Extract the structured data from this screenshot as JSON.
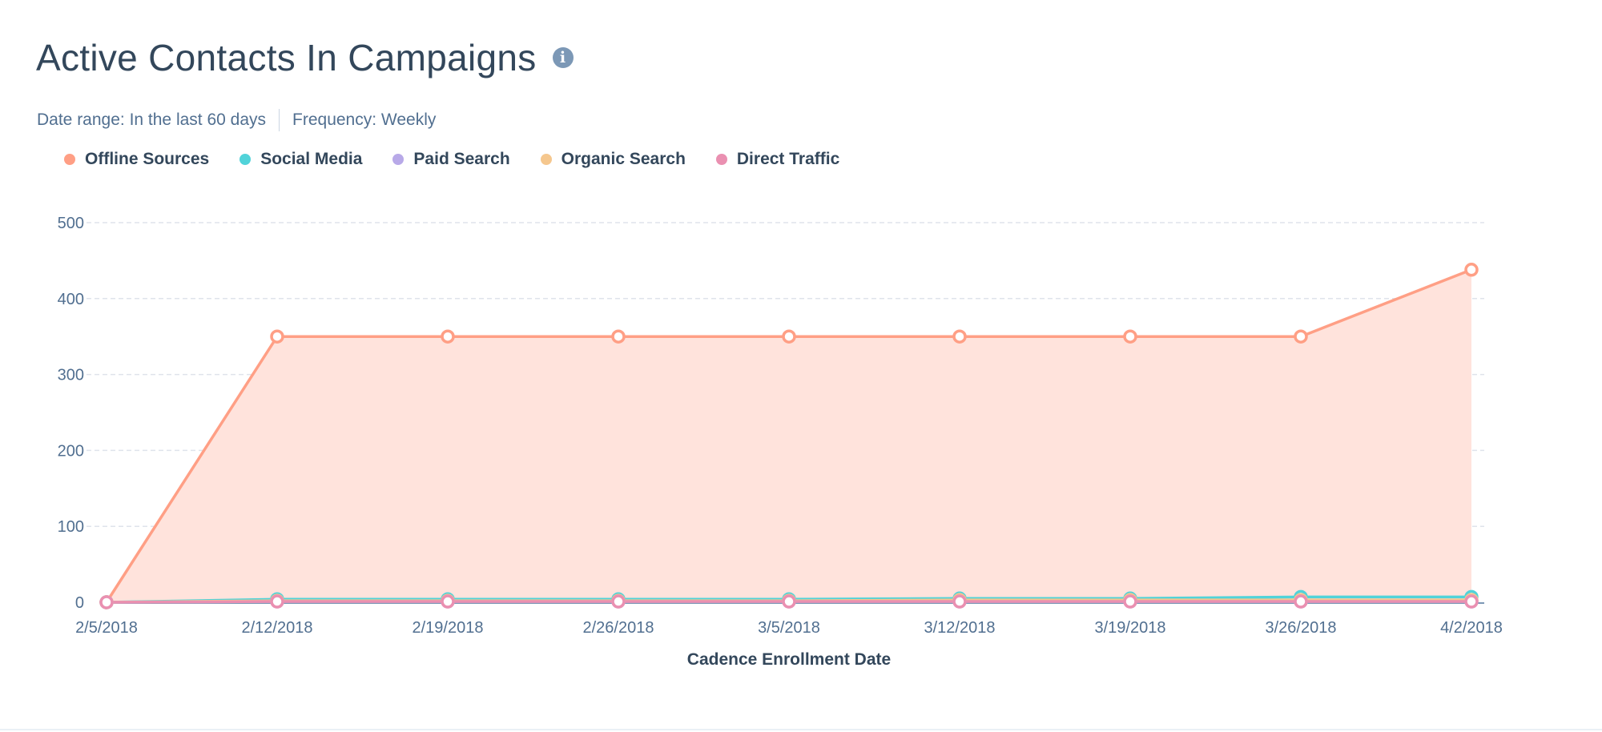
{
  "header": {
    "title": "Active Contacts In Campaigns",
    "info_icon": "info-icon",
    "date_range": "Date range: In the last 60 days",
    "frequency": "Frequency: Weekly"
  },
  "chart_data": {
    "type": "area",
    "title": "Active Contacts In Campaigns",
    "xlabel": "Cadence Enrollment Date",
    "ylabel": "",
    "categories": [
      "2/5/2018",
      "2/12/2018",
      "2/19/2018",
      "2/26/2018",
      "3/5/2018",
      "3/12/2018",
      "3/19/2018",
      "3/26/2018",
      "4/2/2018"
    ],
    "yticks": [
      0,
      100,
      200,
      300,
      400,
      500
    ],
    "ylim": [
      0,
      500
    ],
    "grid": true,
    "legend_position": "top-left",
    "series": [
      {
        "name": "Offline Sources",
        "color": "#ff9f85",
        "values": [
          0,
          350,
          350,
          350,
          350,
          350,
          350,
          350,
          438
        ],
        "fill": true
      },
      {
        "name": "Social Media",
        "color": "#51d3d9",
        "values": [
          0,
          4,
          4,
          4,
          4,
          5,
          5,
          7,
          7
        ]
      },
      {
        "name": "Paid Search",
        "color": "#b8a9e8",
        "values": [
          0,
          1,
          1,
          1,
          1,
          1,
          1,
          1,
          1
        ]
      },
      {
        "name": "Organic Search",
        "color": "#f5c78e",
        "values": [
          0,
          2,
          2,
          2,
          2,
          3,
          3,
          3,
          3
        ]
      },
      {
        "name": "Direct Traffic",
        "color": "#ea90b1",
        "values": [
          0,
          1,
          1,
          1,
          1,
          1,
          1,
          1,
          1
        ]
      }
    ]
  }
}
